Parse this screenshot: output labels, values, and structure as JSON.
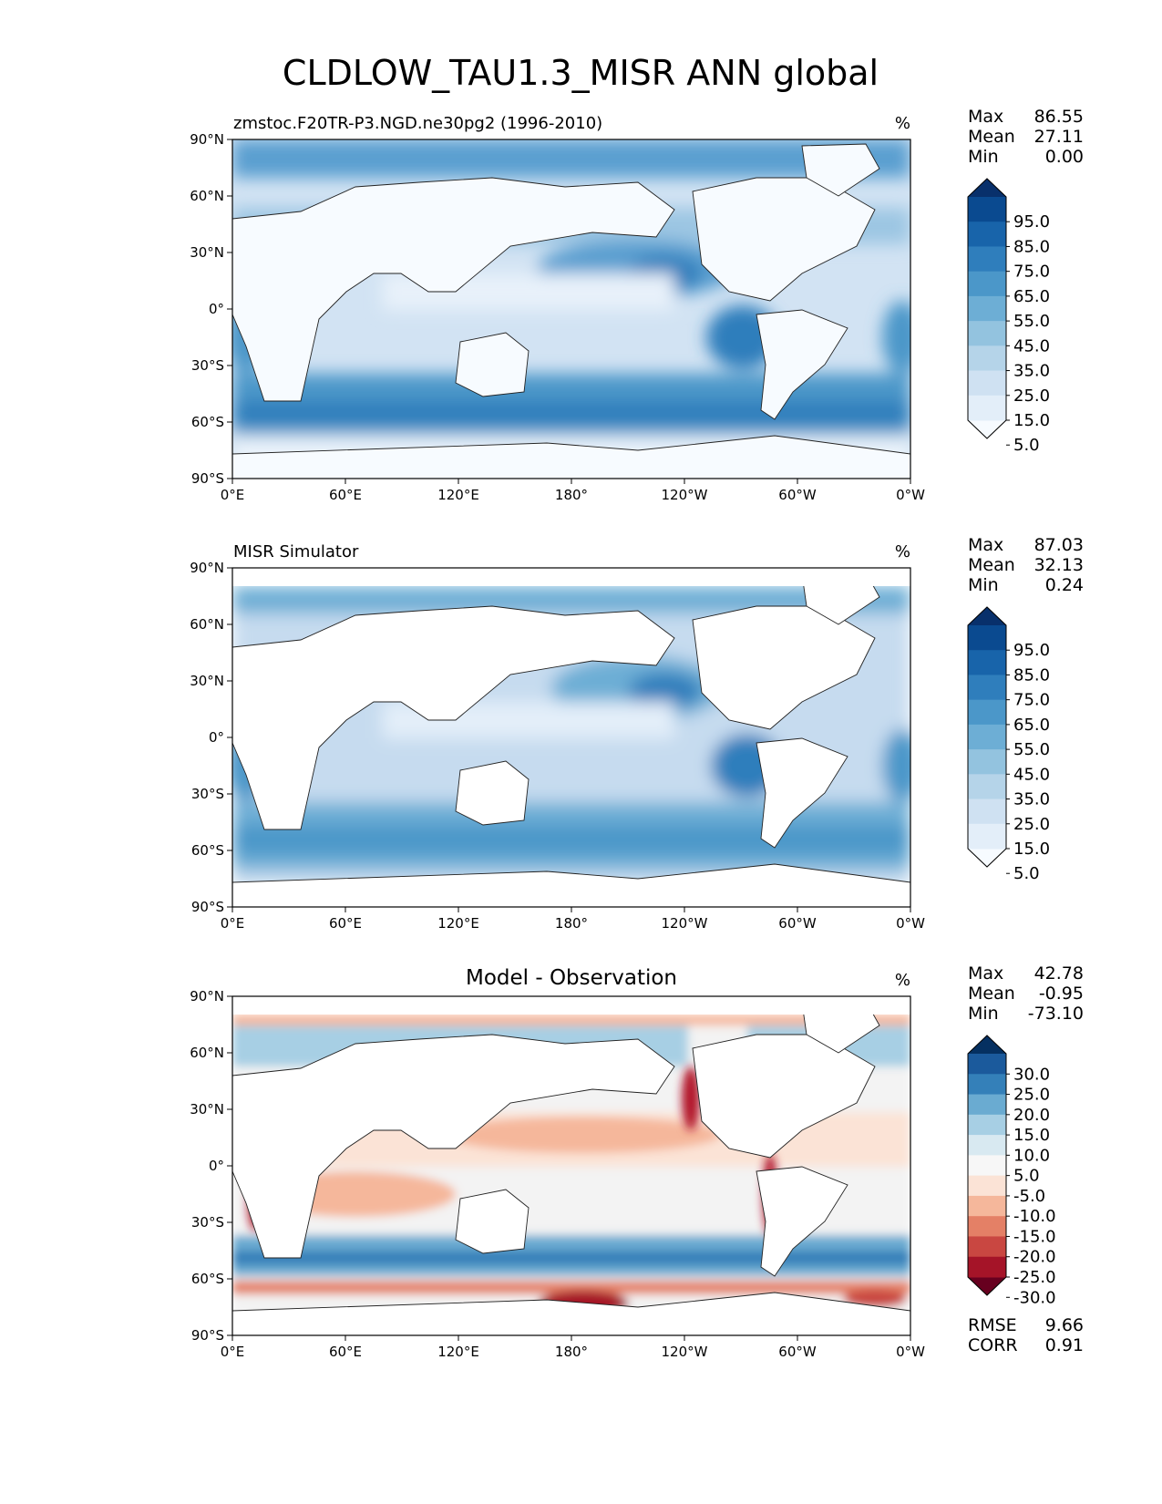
{
  "figure": {
    "title": "CLDLOW_TAU1.3_MISR ANN global",
    "lon_ticks": [
      "0°E",
      "60°E",
      "120°E",
      "180°",
      "120°W",
      "60°W",
      "0°W"
    ],
    "lat_ticks": [
      "90°N",
      "60°N",
      "30°N",
      "0°",
      "30°S",
      "60°S",
      "90°S"
    ],
    "stat_labels": [
      "Max",
      "Mean",
      "Min"
    ],
    "rmse_label": "RMSE",
    "corr_label": "CORR"
  },
  "panels": [
    {
      "id": "model",
      "left_title": "zmstoc.F20TR-P3.NGD.ne30pg2 (1996-2010)",
      "center_title": "",
      "units": "%",
      "stats": [
        "86.55",
        "27.11",
        "0.00"
      ],
      "colorbar_labels": [
        "95.0",
        "85.0",
        "75.0",
        "65.0",
        "55.0",
        "45.0",
        "35.0",
        "25.0",
        "15.0",
        "5.0"
      ],
      "colormap": "blues"
    },
    {
      "id": "obs",
      "left_title": "MISR Simulator",
      "center_title": "",
      "units": "%",
      "stats": [
        "87.03",
        "32.13",
        "0.24"
      ],
      "colorbar_labels": [
        "95.0",
        "85.0",
        "75.0",
        "65.0",
        "55.0",
        "45.0",
        "35.0",
        "25.0",
        "15.0",
        "5.0"
      ],
      "colormap": "blues"
    },
    {
      "id": "diff",
      "left_title": "",
      "center_title": "Model - Observation",
      "units": "%",
      "stats": [
        "42.78",
        "-0.95",
        "-73.10"
      ],
      "colorbar_labels": [
        "30.0",
        "25.0",
        "20.0",
        "15.0",
        "10.0",
        "5.0",
        "-5.0",
        "-10.0",
        "-15.0",
        "-20.0",
        "-25.0",
        "-30.0"
      ],
      "colormap": "diverging",
      "rmse": "9.66",
      "corr": "0.91"
    }
  ],
  "colors": {
    "blues": [
      "#f7fbff",
      "#e3eef9",
      "#cfe1f2",
      "#b5d4e9",
      "#93c3df",
      "#6daed5",
      "#4b97c9",
      "#2f7ebc",
      "#1864aa",
      "#0a4a90",
      "#08306b"
    ],
    "diverging": [
      "#67001f",
      "#a51428",
      "#c94741",
      "#e48066",
      "#f5b79b",
      "#fbe3d6",
      "#f7f7f7",
      "#d8e9f1",
      "#a7cfe4",
      "#6aabd1",
      "#3480b9",
      "#1b5a9c",
      "#053061"
    ]
  }
}
